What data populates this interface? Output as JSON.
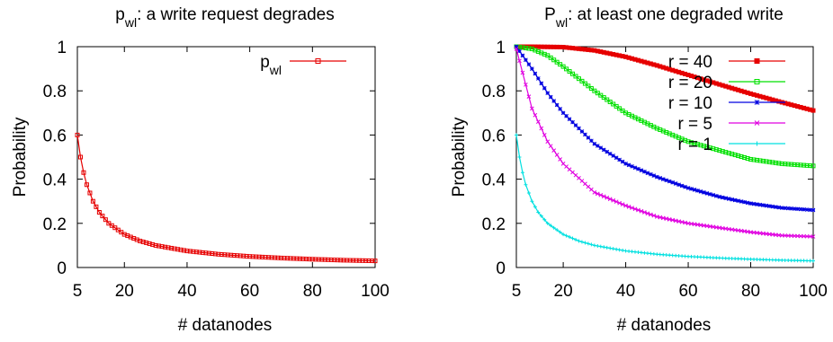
{
  "chart_data": [
    {
      "type": "line",
      "title_main": "p",
      "title_sub": "wl",
      "title_rest": ": a write request degrades",
      "xlabel": "# datanodes",
      "ylabel": "Probability",
      "xlim": [
        5,
        100
      ],
      "ylim": [
        0,
        1
      ],
      "xticks": [
        "5",
        "20",
        "40",
        "60",
        "80",
        "100"
      ],
      "xtick_values": [
        5,
        20,
        40,
        60,
        80,
        100
      ],
      "yticks": [
        "0",
        "0.2",
        "0.4",
        "0.6",
        "0.8",
        "1"
      ],
      "ytick_values": [
        0,
        0.2,
        0.4,
        0.6,
        0.8,
        1
      ],
      "legend_position": "top-right",
      "grid": false,
      "series": [
        {
          "name_main": "p",
          "name_sub": "wl",
          "color": "#e60000",
          "marker": "open-square",
          "x": [
            5,
            6,
            7,
            8,
            10,
            12,
            15,
            20,
            25,
            30,
            40,
            50,
            60,
            70,
            80,
            90,
            100
          ],
          "values": [
            0.6,
            0.5,
            0.43,
            0.375,
            0.3,
            0.25,
            0.2,
            0.15,
            0.12,
            0.1,
            0.075,
            0.06,
            0.05,
            0.043,
            0.0375,
            0.033,
            0.03
          ]
        }
      ]
    },
    {
      "type": "line",
      "title_main": "P",
      "title_sub": "wl",
      "title_rest": ": at least one degraded write",
      "xlabel": "# datanodes",
      "ylabel": "Probability",
      "xlim": [
        5,
        100
      ],
      "ylim": [
        0,
        1
      ],
      "xticks": [
        "5",
        "20",
        "40",
        "60",
        "80",
        "100"
      ],
      "xtick_values": [
        5,
        20,
        40,
        60,
        80,
        100
      ],
      "yticks": [
        "0",
        "0.2",
        "0.4",
        "0.6",
        "0.8",
        "1"
      ],
      "ytick_values": [
        0,
        0.2,
        0.4,
        0.6,
        0.8,
        1
      ],
      "legend_position": "top-right",
      "grid": false,
      "series": [
        {
          "name": "r = 40",
          "color": "#e60000",
          "marker": "filled-square",
          "x": [
            5,
            10,
            15,
            20,
            30,
            40,
            50,
            60,
            70,
            80,
            90,
            100
          ],
          "values": [
            1.0,
            1.0,
            0.999,
            0.998,
            0.983,
            0.954,
            0.915,
            0.872,
            0.829,
            0.787,
            0.748,
            0.711
          ]
        },
        {
          "name": "r = 20",
          "color": "#00e000",
          "marker": "open-square",
          "x": [
            5,
            10,
            15,
            20,
            30,
            40,
            50,
            60,
            70,
            80,
            90,
            100
          ],
          "values": [
            1.0,
            0.99,
            0.96,
            0.91,
            0.8,
            0.7,
            0.63,
            0.57,
            0.53,
            0.49,
            0.47,
            0.46
          ]
        },
        {
          "name": "r = 10",
          "color": "#0000e0",
          "marker": "asterisk",
          "x": [
            5,
            10,
            15,
            20,
            30,
            40,
            50,
            60,
            70,
            80,
            90,
            100
          ],
          "values": [
            1.0,
            0.9,
            0.79,
            0.7,
            0.56,
            0.47,
            0.41,
            0.36,
            0.32,
            0.29,
            0.27,
            0.26
          ]
        },
        {
          "name": "r = 5",
          "color": "#e000e0",
          "marker": "x",
          "x": [
            5,
            10,
            15,
            20,
            30,
            40,
            50,
            60,
            70,
            80,
            90,
            100
          ],
          "values": [
            0.99,
            0.72,
            0.57,
            0.47,
            0.34,
            0.28,
            0.23,
            0.2,
            0.18,
            0.16,
            0.145,
            0.14
          ]
        },
        {
          "name": "r = 1",
          "color": "#00e0e0",
          "marker": "plus",
          "x": [
            5,
            6,
            7,
            8,
            10,
            12,
            15,
            20,
            25,
            30,
            40,
            50,
            60,
            70,
            80,
            90,
            100
          ],
          "values": [
            0.6,
            0.5,
            0.43,
            0.375,
            0.3,
            0.25,
            0.2,
            0.15,
            0.12,
            0.1,
            0.075,
            0.06,
            0.05,
            0.043,
            0.0375,
            0.033,
            0.03
          ]
        }
      ]
    }
  ]
}
